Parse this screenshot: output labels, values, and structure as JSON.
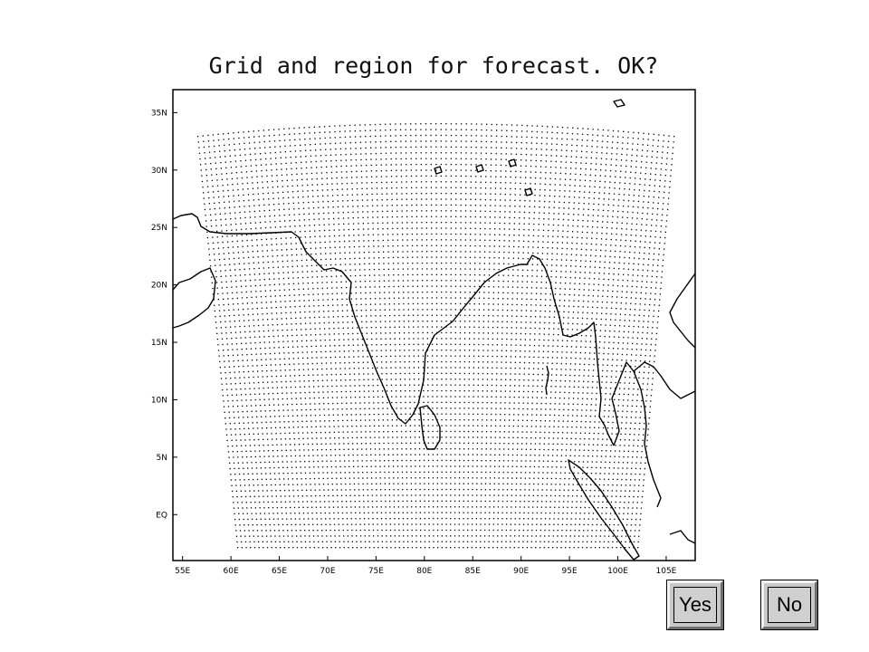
{
  "title": "Grid and region for forecast. OK?",
  "map": {
    "lon_ticks": [
      "55E",
      "60E",
      "65E",
      "70E",
      "75E",
      "80E",
      "85E",
      "90E",
      "95E",
      "100E",
      "105E"
    ],
    "lat_ticks": [
      "35N",
      "30N",
      "25N",
      "20N",
      "15N",
      "10N",
      "5N",
      "EQ"
    ],
    "lon_range": [
      54,
      108
    ],
    "lat_range": [
      -4,
      37
    ],
    "grid": {
      "lon_range": [
        57.5,
        104.5
      ],
      "lat_range": [
        -2.5,
        34
      ],
      "spacing_deg": 0.5
    }
  },
  "buttons": {
    "yes": "Yes",
    "no": "No"
  }
}
